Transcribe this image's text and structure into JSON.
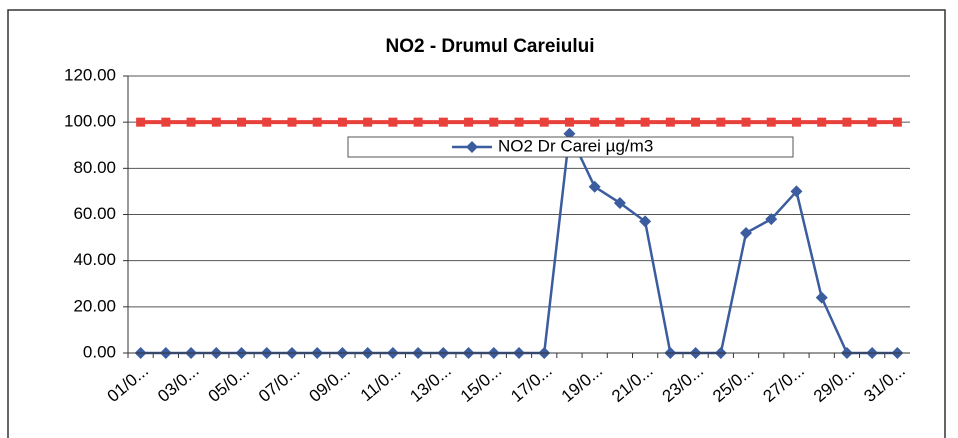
{
  "chart_data": {
    "type": "line",
    "title": "NO2 - Drumul Careiului",
    "categories": [
      "01/0...",
      null,
      "03/0...",
      null,
      "05/0...",
      null,
      "07/0...",
      null,
      "09/0...",
      null,
      "11/0...",
      null,
      "13/0...",
      null,
      "15/0...",
      null,
      "17/0...",
      null,
      "19/0...",
      null,
      "21/0...",
      null,
      "23/0...",
      null,
      "25/0...",
      null,
      "27/0...",
      null,
      "29/0...",
      null,
      "31/0..."
    ],
    "series": [
      {
        "name": "NO2 Dr Carei  µg/m3",
        "color": "#3b5c9e",
        "marker": "diamond",
        "values": [
          0,
          0,
          0,
          0,
          0,
          0,
          0,
          0,
          0,
          0,
          0,
          0,
          0,
          0,
          0,
          0,
          0,
          95,
          72,
          65,
          57,
          0,
          0,
          0,
          52,
          58,
          70,
          24,
          0,
          0,
          0
        ]
      },
      {
        "color": "#e8413c",
        "marker": "square",
        "values": [
          100,
          100,
          100,
          100,
          100,
          100,
          100,
          100,
          100,
          100,
          100,
          100,
          100,
          100,
          100,
          100,
          100,
          100,
          100,
          100,
          100,
          100,
          100,
          100,
          100,
          100,
          100,
          100,
          100,
          100,
          100
        ]
      }
    ],
    "ylim": [
      0,
      120
    ],
    "yticks": [
      {
        "value": 0,
        "label": "0.00"
      },
      {
        "value": 20,
        "label": "20.00"
      },
      {
        "value": 40,
        "label": "40.00"
      },
      {
        "value": 60,
        "label": "60.00"
      },
      {
        "value": 80,
        "label": "80.00"
      },
      {
        "value": 100,
        "label": "100.00"
      },
      {
        "value": 120,
        "label": "120.00"
      }
    ],
    "grid": true
  }
}
